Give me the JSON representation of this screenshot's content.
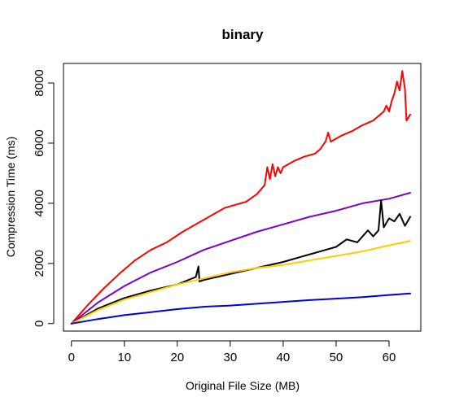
{
  "chart_data": {
    "type": "line",
    "title": "binary",
    "xlabel": "Original File Size (MB)",
    "ylabel": "Compression Time (ms)",
    "xlim": [
      -1.5,
      66
    ],
    "ylim": [
      -250,
      8650
    ],
    "x_ticks": [
      0,
      10,
      20,
      30,
      40,
      50,
      60
    ],
    "y_ticks": [
      0,
      2000,
      4000,
      6000,
      8000
    ],
    "x_tick_labels": [
      "0",
      "10",
      "20",
      "30",
      "40",
      "50",
      "60"
    ],
    "y_tick_labels": [
      "0",
      "2000",
      "4000",
      "6000",
      "8000"
    ],
    "grid": false,
    "legend": "none",
    "series": [
      {
        "color": "#FF0000",
        "points": [
          [
            0,
            0
          ],
          [
            3,
            600
          ],
          [
            6,
            1150
          ],
          [
            9,
            1650
          ],
          [
            12,
            2100
          ],
          [
            15,
            2450
          ],
          [
            18,
            2700
          ],
          [
            21,
            3050
          ],
          [
            24,
            3350
          ],
          [
            27,
            3650
          ],
          [
            29,
            3850
          ],
          [
            31,
            3950
          ],
          [
            33,
            4050
          ],
          [
            35,
            4300
          ],
          [
            36.5,
            4600
          ],
          [
            37,
            5200
          ],
          [
            37.5,
            4800
          ],
          [
            38,
            5300
          ],
          [
            38.5,
            4900
          ],
          [
            39,
            5200
          ],
          [
            39.5,
            5000
          ],
          [
            40,
            5200
          ],
          [
            42,
            5400
          ],
          [
            44,
            5550
          ],
          [
            46,
            5650
          ],
          [
            47,
            5800
          ],
          [
            48,
            6050
          ],
          [
            48.5,
            6350
          ],
          [
            49,
            6050
          ],
          [
            51,
            6250
          ],
          [
            53,
            6400
          ],
          [
            55,
            6600
          ],
          [
            57,
            6750
          ],
          [
            58,
            6900
          ],
          [
            59,
            7050
          ],
          [
            59.5,
            7250
          ],
          [
            60,
            7050
          ],
          [
            60.5,
            7400
          ],
          [
            61,
            7650
          ],
          [
            61.5,
            8050
          ],
          [
            62,
            7750
          ],
          [
            62.5,
            8400
          ],
          [
            63,
            7800
          ],
          [
            63.3,
            6750
          ],
          [
            64,
            6950
          ]
        ]
      },
      {
        "color": "#8000C8",
        "points": [
          [
            0,
            0
          ],
          [
            5,
            700
          ],
          [
            10,
            1250
          ],
          [
            15,
            1700
          ],
          [
            20,
            2050
          ],
          [
            25,
            2450
          ],
          [
            30,
            2750
          ],
          [
            35,
            3050
          ],
          [
            40,
            3300
          ],
          [
            45,
            3550
          ],
          [
            50,
            3750
          ],
          [
            55,
            4000
          ],
          [
            60,
            4150
          ],
          [
            64,
            4350
          ]
        ]
      },
      {
        "color": "#000000",
        "points": [
          [
            0,
            0
          ],
          [
            5,
            500
          ],
          [
            10,
            850
          ],
          [
            15,
            1100
          ],
          [
            20,
            1300
          ],
          [
            23.5,
            1550
          ],
          [
            24,
            1900
          ],
          [
            24.2,
            1400
          ],
          [
            25,
            1450
          ],
          [
            30,
            1650
          ],
          [
            35,
            1850
          ],
          [
            40,
            2050
          ],
          [
            45,
            2300
          ],
          [
            48,
            2450
          ],
          [
            50,
            2550
          ],
          [
            52,
            2800
          ],
          [
            54,
            2700
          ],
          [
            56,
            3100
          ],
          [
            57,
            2900
          ],
          [
            58,
            3100
          ],
          [
            58.5,
            4100
          ],
          [
            59,
            3200
          ],
          [
            60,
            3500
          ],
          [
            61,
            3400
          ],
          [
            62,
            3650
          ],
          [
            63,
            3250
          ],
          [
            64,
            3550
          ]
        ]
      },
      {
        "color": "#FFCC00",
        "points": [
          [
            0,
            0
          ],
          [
            5,
            450
          ],
          [
            10,
            800
          ],
          [
            15,
            1050
          ],
          [
            20,
            1300
          ],
          [
            25,
            1500
          ],
          [
            30,
            1700
          ],
          [
            35,
            1850
          ],
          [
            40,
            1950
          ],
          [
            45,
            2100
          ],
          [
            50,
            2250
          ],
          [
            55,
            2400
          ],
          [
            60,
            2600
          ],
          [
            64,
            2750
          ]
        ]
      },
      {
        "color": "#0000DD",
        "points": [
          [
            0,
            0
          ],
          [
            5,
            150
          ],
          [
            10,
            280
          ],
          [
            15,
            380
          ],
          [
            20,
            480
          ],
          [
            25,
            560
          ],
          [
            30,
            600
          ],
          [
            35,
            660
          ],
          [
            40,
            720
          ],
          [
            45,
            780
          ],
          [
            50,
            830
          ],
          [
            55,
            880
          ],
          [
            60,
            950
          ],
          [
            64,
            1000
          ]
        ]
      }
    ]
  }
}
